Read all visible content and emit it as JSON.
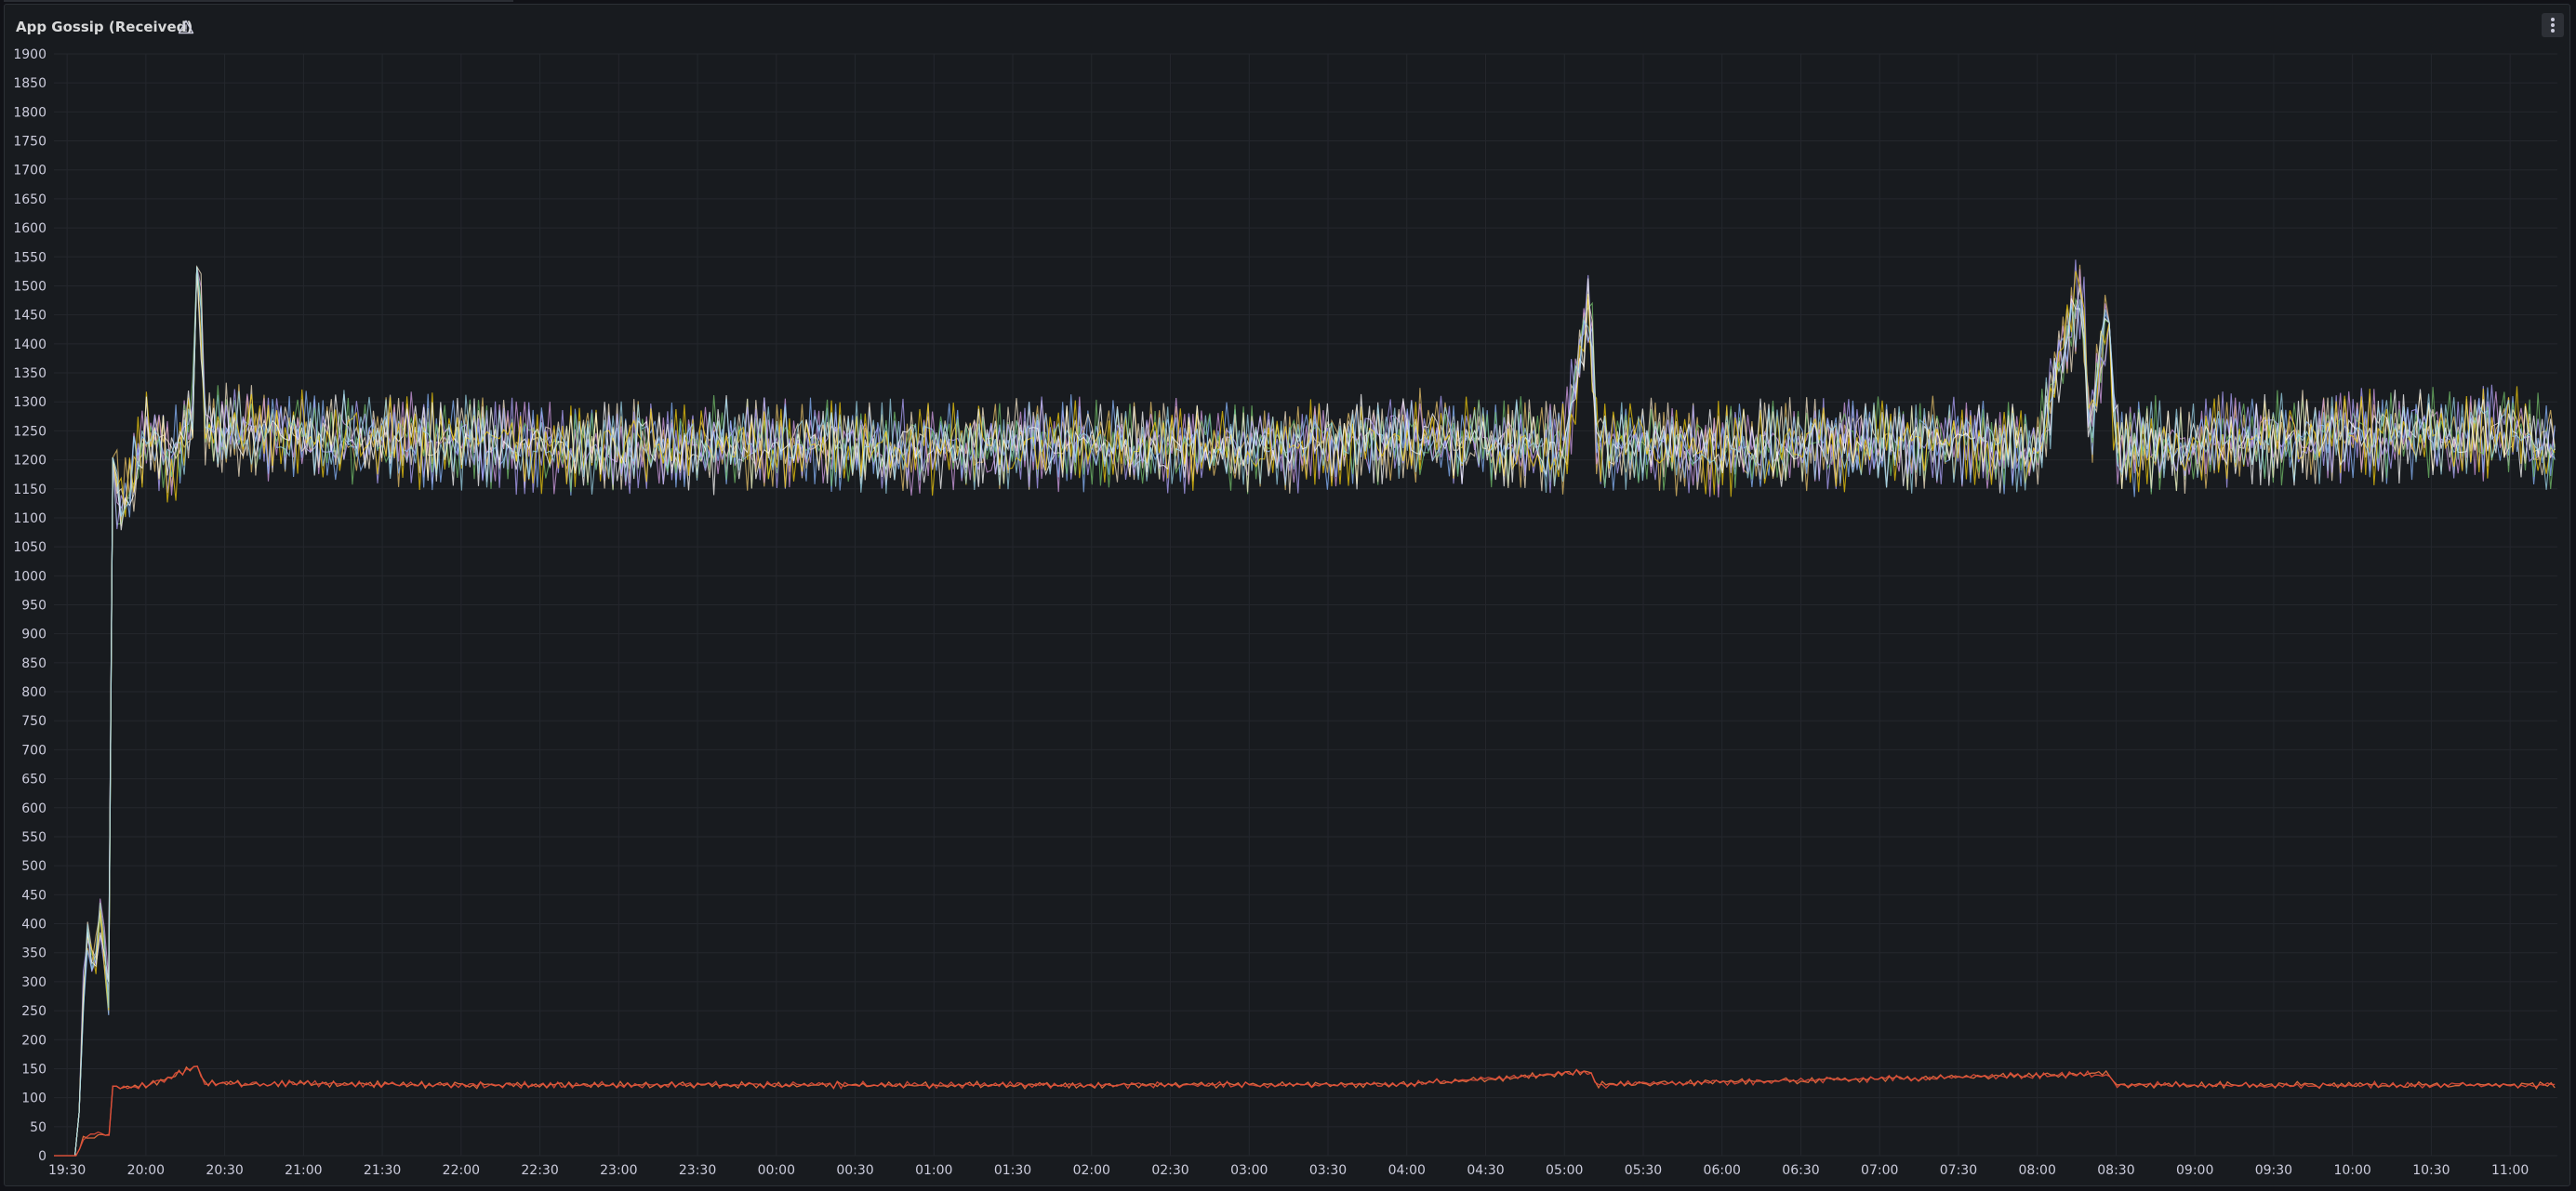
{
  "panel": {
    "title": "App Gossip (Received)",
    "warning_icon": "warning-triangle-icon",
    "menu_icon": "more-vertical-icon"
  },
  "colors": {
    "background": "#111217",
    "panel": "#181b1f",
    "grid": "#24272d",
    "text": "#ccccdc",
    "series_high": [
      "#e8c36a",
      "#d6a0e8",
      "#8ab8ff",
      "#73bf69",
      "#f5e6c8",
      "#b2a5ff",
      "#f2cc0c",
      "#ffffff",
      "#9bd4e8"
    ],
    "series_low": [
      "#f2703f",
      "#e04d3a"
    ]
  },
  "chart_data": {
    "type": "line",
    "title": "App Gossip (Received)",
    "xlabel": "",
    "ylabel": "",
    "ylim": [
      0,
      1900
    ],
    "y_ticks": [
      "0",
      "50",
      "100",
      "150",
      "200",
      "250",
      "300",
      "350",
      "400",
      "450",
      "500",
      "550",
      "600",
      "650",
      "700",
      "750",
      "800",
      "850",
      "900",
      "950",
      "1000",
      "1050",
      "1100",
      "1150",
      "1200",
      "1250",
      "1300",
      "1350",
      "1400",
      "1450",
      "1500",
      "1550",
      "1600",
      "1650",
      "1700",
      "1750",
      "1800",
      "1850",
      "1900"
    ],
    "x_range": [
      "19:25",
      "11:18"
    ],
    "x_ticks": [
      "19:30",
      "20:00",
      "20:30",
      "21:00",
      "21:30",
      "22:00",
      "22:30",
      "23:00",
      "23:30",
      "00:00",
      "00:30",
      "01:00",
      "01:30",
      "02:00",
      "02:30",
      "03:00",
      "03:30",
      "04:00",
      "04:30",
      "05:00",
      "05:30",
      "06:00",
      "06:30",
      "07:00",
      "07:30",
      "08:00",
      "08:30",
      "09:00",
      "09:30",
      "10:00",
      "10:30",
      "11:00"
    ],
    "grid": true,
    "legend": "none",
    "series_groups": [
      {
        "group": "high",
        "series_count": 9,
        "points": [
          [
            "19:25",
            0
          ],
          [
            "19:34",
            0
          ],
          [
            "19:36",
            250
          ],
          [
            "19:37",
            400
          ],
          [
            "19:40",
            300
          ],
          [
            "19:43",
            420
          ],
          [
            "19:46",
            260
          ],
          [
            "19:47",
            1220
          ],
          [
            "19:50",
            1100
          ],
          [
            "20:00",
            1250
          ],
          [
            "20:10",
            1200
          ],
          [
            "20:18",
            1260
          ],
          [
            "20:20",
            1650
          ],
          [
            "20:22",
            1250
          ],
          [
            "21:00",
            1240
          ],
          [
            "22:00",
            1230
          ],
          [
            "23:00",
            1220
          ],
          [
            "00:00",
            1230
          ],
          [
            "01:00",
            1220
          ],
          [
            "02:00",
            1230
          ],
          [
            "03:00",
            1220
          ],
          [
            "04:00",
            1240
          ],
          [
            "05:00",
            1220
          ],
          [
            "05:10",
            1480
          ],
          [
            "05:12",
            1230
          ],
          [
            "06:00",
            1220
          ],
          [
            "07:00",
            1230
          ],
          [
            "08:00",
            1220
          ],
          [
            "08:17",
            1500
          ],
          [
            "08:20",
            1240
          ],
          [
            "08:27",
            1470
          ],
          [
            "08:30",
            1220
          ],
          [
            "09:00",
            1230
          ],
          [
            "10:00",
            1240
          ],
          [
            "11:00",
            1250
          ],
          [
            "11:18",
            1220
          ]
        ],
        "typical_range": [
          1100,
          1350
        ]
      },
      {
        "group": "low",
        "series_count": 2,
        "points": [
          [
            "19:25",
            0
          ],
          [
            "19:34",
            0
          ],
          [
            "19:36",
            30
          ],
          [
            "19:46",
            40
          ],
          [
            "19:47",
            120
          ],
          [
            "20:00",
            120
          ],
          [
            "20:20",
            155
          ],
          [
            "20:22",
            125
          ],
          [
            "22:00",
            122
          ],
          [
            "00:00",
            122
          ],
          [
            "02:00",
            122
          ],
          [
            "04:00",
            123
          ],
          [
            "05:10",
            145
          ],
          [
            "05:12",
            122
          ],
          [
            "08:17",
            140
          ],
          [
            "08:27",
            140
          ],
          [
            "08:30",
            122
          ],
          [
            "10:00",
            122
          ],
          [
            "11:18",
            122
          ]
        ],
        "typical_range": [
          110,
          135
        ]
      }
    ]
  }
}
